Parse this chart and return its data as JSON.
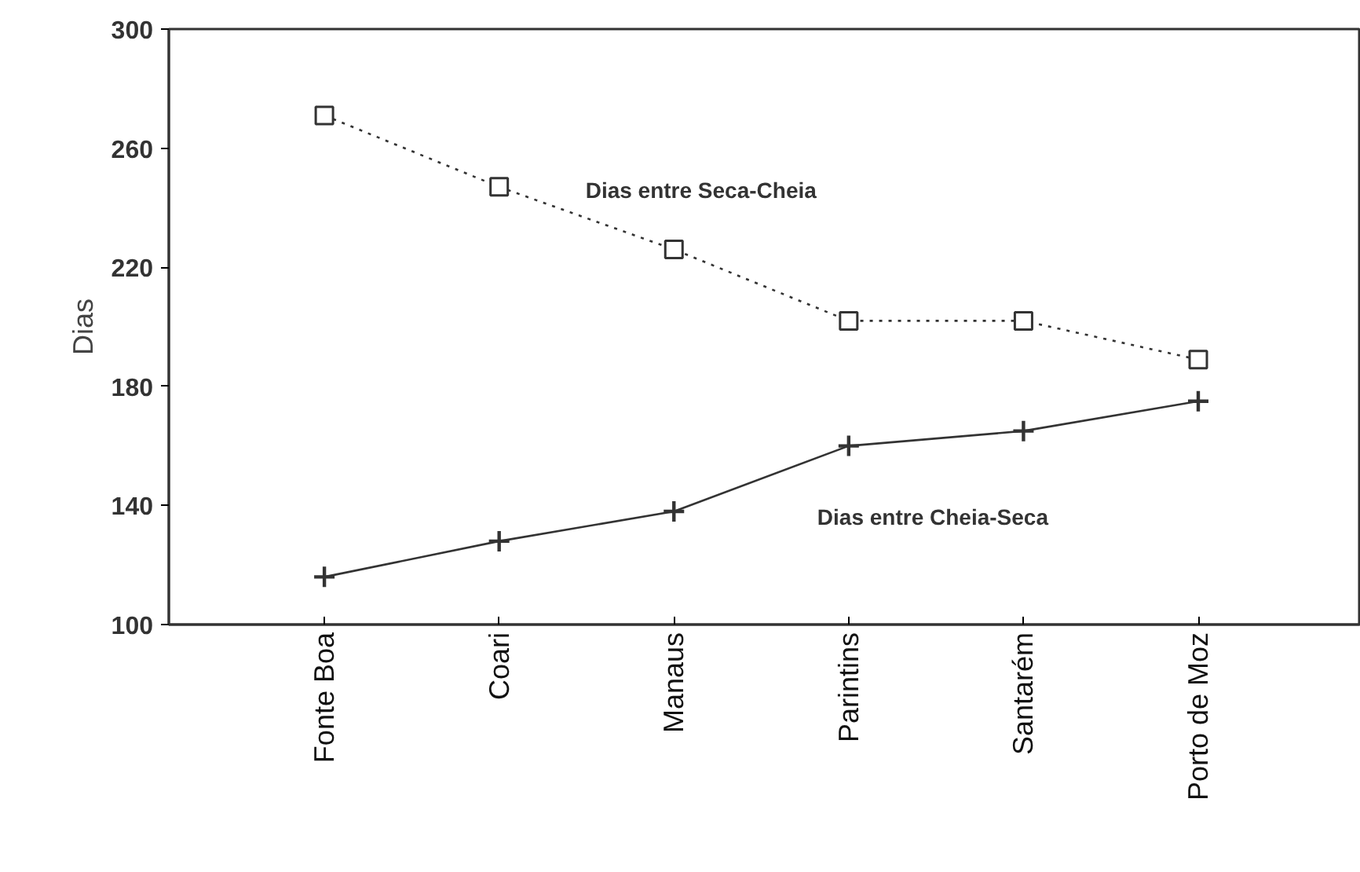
{
  "chart_data": {
    "type": "line",
    "ylabel": "Dias",
    "categories": [
      "Fonte Boa",
      "Coari",
      "Manaus",
      "Parintins",
      "Santarém",
      "Porto de Moz"
    ],
    "series": [
      {
        "name": "Dias entre Seca-Cheia",
        "color": "#333333",
        "marker": "square",
        "line_style": "dotted",
        "values": [
          271,
          247,
          226,
          202,
          202,
          189
        ]
      },
      {
        "name": "Dias entre Cheia-Seca",
        "color": "#333333",
        "marker": "cross",
        "line_style": "solid",
        "values": [
          116,
          128,
          138,
          160,
          165,
          175
        ]
      }
    ],
    "ylim": [
      100,
      300
    ],
    "yticks": [
      100,
      140,
      180,
      220,
      260,
      300
    ],
    "grid": false
  }
}
